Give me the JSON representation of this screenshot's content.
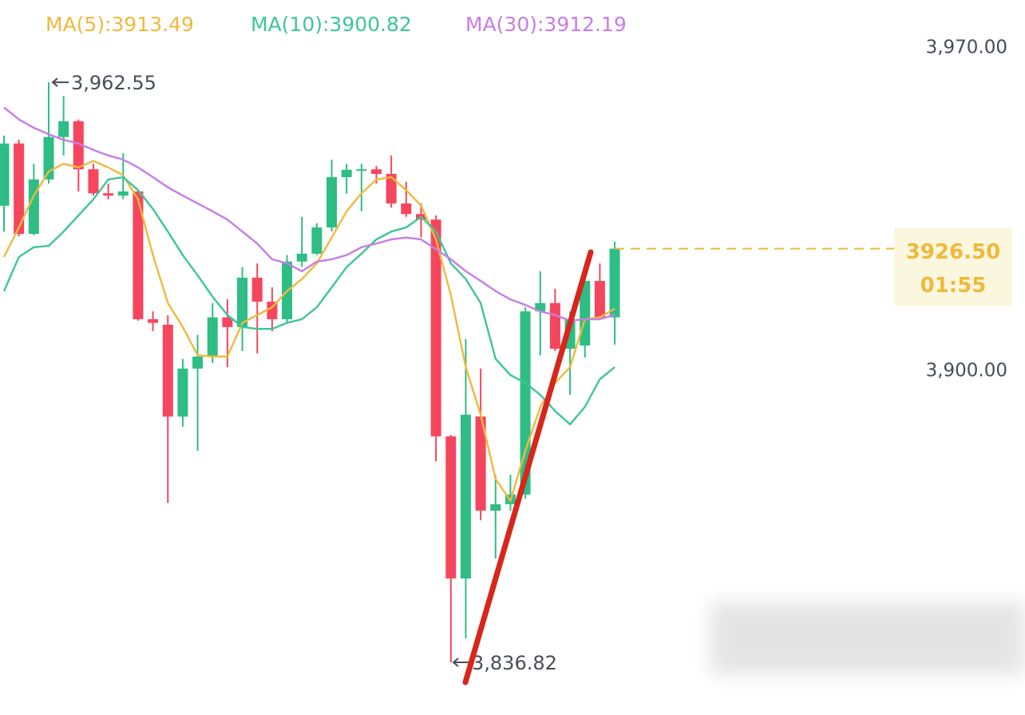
{
  "chart_data": {
    "type": "candlestick",
    "open": [
      3935.8,
      3949.3,
      3929.7,
      3941.5,
      3950.7,
      3954.1,
      3943.7,
      3938.5,
      3938.0,
      3938.9,
      3911.2,
      3910.0,
      3890.1,
      3900.5,
      3903.1,
      3911.6,
      3909.5,
      3920.2,
      3915.0,
      3911.2,
      3923.7,
      3925.4,
      3931.1,
      3942.0,
      3943.6,
      3943.7,
      3942.7,
      3936.3,
      3934.0,
      3932.8,
      3885.8,
      3855.0,
      3890.1,
      3869.7,
      3871.1,
      3873.2,
      3912.9,
      3914.7,
      3904.8,
      3905.5,
      3919.5,
      3911.6
    ],
    "high": [
      3951.0,
      3950.1,
      3944.9,
      3962.55,
      3959.6,
      3954.5,
      3944.9,
      3940.6,
      3947.2,
      3939.2,
      3912.9,
      3912.1,
      3902.6,
      3907.8,
      3914.7,
      3915.5,
      3922.5,
      3923.3,
      3918.1,
      3925.1,
      3933.4,
      3932.0,
      3945.8,
      3944.9,
      3944.9,
      3944.4,
      3946.7,
      3941.0,
      3936.3,
      3933.7,
      3886.1,
      3906.9,
      3900.5,
      3877.5,
      3877.5,
      3913.8,
      3921.6,
      3917.8,
      3912.9,
      3921.6,
      3923.3,
      3928.0
    ],
    "low": [
      3930.2,
      3929.2,
      3929.4,
      3940.6,
      3946.7,
      3938.9,
      3938.0,
      3937.2,
      3937.2,
      3910.9,
      3908.6,
      3871.4,
      3887.9,
      3882.7,
      3901.7,
      3900.8,
      3904.3,
      3903.8,
      3908.6,
      3910.4,
      3922.5,
      3925.1,
      3930.2,
      3938.4,
      3934.6,
      3940.6,
      3935.4,
      3933.4,
      3928.9,
      3880.4,
      3836.82,
      3842.0,
      3867.6,
      3859.3,
      3869.7,
      3872.3,
      3903.4,
      3904.3,
      3894.8,
      3902.9,
      3911.2,
      3905.7
    ],
    "close": [
      3949.3,
      3929.7,
      3941.5,
      3950.7,
      3954.1,
      3943.7,
      3938.5,
      3938.0,
      3938.9,
      3911.2,
      3910.4,
      3890.1,
      3900.5,
      3903.1,
      3911.6,
      3909.5,
      3920.2,
      3915.0,
      3911.2,
      3923.7,
      3925.4,
      3931.1,
      3942.0,
      3943.6,
      3943.7,
      3942.7,
      3936.3,
      3934.0,
      3932.8,
      3885.8,
      3855.0,
      3890.5,
      3869.7,
      3871.1,
      3873.2,
      3912.9,
      3914.7,
      3904.8,
      3911.2,
      3919.5,
      3911.6,
      3926.5
    ],
    "up_color": "#2ebd85",
    "down_color": "#f6465d",
    "ylim": [
      3825.4,
      3980.4
    ],
    "yticks": [
      {
        "value": 3970,
        "label": "3,970.00"
      },
      {
        "value": 3900,
        "label": "3,900.00"
      }
    ],
    "series": [
      {
        "name": "MA(5):3913.49",
        "color": "#f0b93b",
        "values": [
          3924.7,
          3931.1,
          3938.0,
          3943.2,
          3944.9,
          3944.1,
          3945.5,
          3944.1,
          3942.4,
          3937.2,
          3925.1,
          3914.7,
          3909.5,
          3903.4,
          3903.1,
          3903.1,
          3910.4,
          3912.1,
          3913.8,
          3917.3,
          3919.9,
          3923.3,
          3928.9,
          3934.6,
          3938.5,
          3941.5,
          3942.0,
          3939.2,
          3935.8,
          3928.5,
          3916.4,
          3900.8,
          3890.5,
          3876.6,
          3871.8,
          3882.7,
          3892.2,
          3897.4,
          3900.8,
          3911.2,
          3911.6,
          3913.49
        ]
      },
      {
        "name": "MA(10):3900.82",
        "color": "#3ec59a",
        "values": [
          3917.3,
          3924.7,
          3926.8,
          3927.1,
          3930.2,
          3933.7,
          3937.2,
          3941.5,
          3942.0,
          3939.2,
          3935.1,
          3930.2,
          3925.1,
          3920.7,
          3916.1,
          3912.1,
          3909.5,
          3909.1,
          3909.1,
          3910.4,
          3911.2,
          3913.8,
          3918.1,
          3922.5,
          3925.4,
          3928.5,
          3930.2,
          3931.1,
          3933.4,
          3930.2,
          3923.3,
          3919.9,
          3914.7,
          3902.6,
          3899.1,
          3897.4,
          3894.8,
          3891.3,
          3888.4,
          3892.2,
          3898.2,
          3900.82
        ]
      },
      {
        "name": "MA(30):3912.19",
        "color": "#c77de6",
        "values": [
          3957.1,
          3954.5,
          3952.7,
          3951.3,
          3950.1,
          3949.3,
          3947.9,
          3946.7,
          3945.8,
          3944.1,
          3942.0,
          3939.8,
          3938.0,
          3936.3,
          3934.6,
          3932.8,
          3930.2,
          3927.6,
          3924.2,
          3923.3,
          3921.6,
          3923.7,
          3924.2,
          3925.1,
          3926.8,
          3927.6,
          3928.5,
          3928.9,
          3928.5,
          3926.4,
          3924.2,
          3921.6,
          3919.5,
          3917.3,
          3915.5,
          3914.3,
          3912.9,
          3912.1,
          3910.9,
          3911.2,
          3911.2,
          3912.19
        ]
      }
    ],
    "last_price": {
      "value": 3926.5,
      "label": "3926.50"
    },
    "countdown": "01:55",
    "high_marker": {
      "value": 3962.55,
      "label": "3,962.55"
    },
    "low_marker": {
      "value": 3836.82,
      "label": "3,836.82"
    }
  }
}
